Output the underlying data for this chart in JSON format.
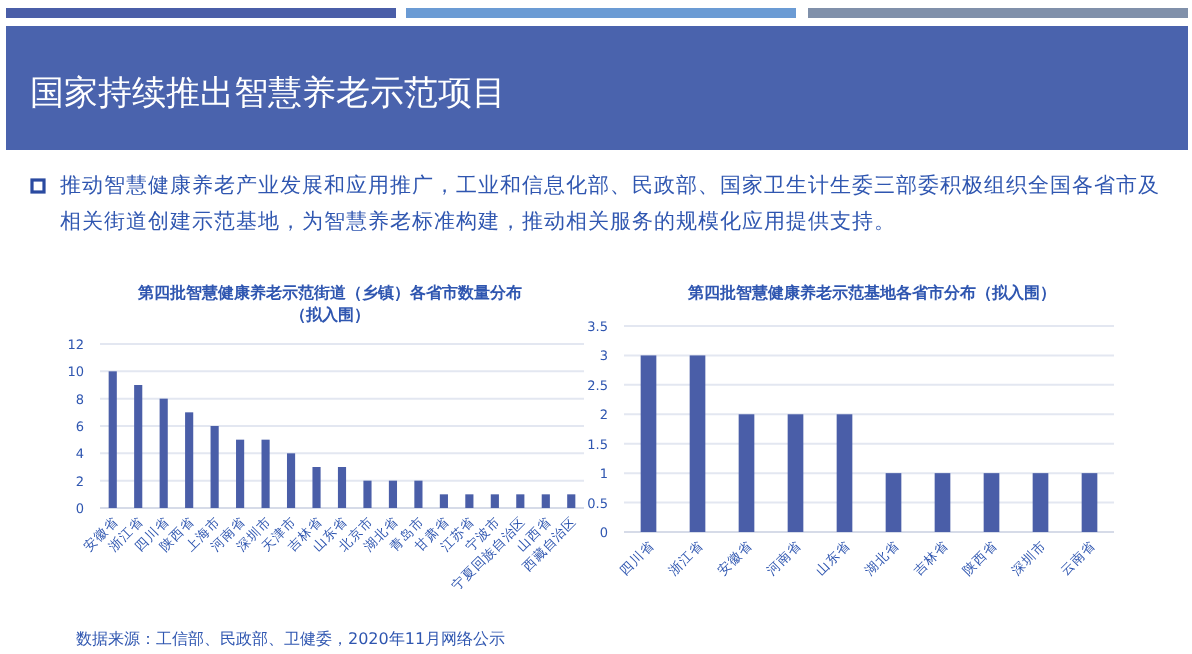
{
  "chart_data": [
    {
      "type": "other",
      "title": "国家持续推出智慧养老示范项目",
      "annotations": [
        "推动智慧健康养老产业发展和应用推广，工业和信息化部、民政部、国家卫生计生委三部委积极组织全国各省市及相关街道创建示范基地，为智慧养老标准构建，推动相关服务的规模化应用提供支持。",
        "数据来源：工信部、民政部、卫健委，2020年11月网络公示"
      ]
    },
    {
      "type": "bar",
      "title": "第四批智慧健康养老示范街道（乡镇）各省市数量分布",
      "subtitle": "（拟入围）",
      "categories": [
        "安徽省",
        "浙江省",
        "四川省",
        "陕西省",
        "上海市",
        "河南省",
        "深圳市",
        "天津市",
        "吉林省",
        "山东省",
        "北京市",
        "湖北省",
        "青岛市",
        "甘肃省",
        "江苏省",
        "宁波市",
        "宁夏回族自治区",
        "山西省",
        "西藏自治区"
      ],
      "values": [
        10,
        9,
        8,
        7,
        6,
        5,
        5,
        4,
        3,
        3,
        2,
        2,
        2,
        1,
        1,
        1,
        1,
        1,
        1
      ],
      "color": "#4a5ea8",
      "ylim": [
        0,
        12
      ],
      "yticks": [
        0,
        2,
        4,
        6,
        8,
        10,
        12
      ],
      "grid": "y"
    },
    {
      "type": "bar",
      "title": "第四批智慧健康养老示范基地各省市分布（拟入围）",
      "categories": [
        "四川省",
        "浙江省",
        "安徽省",
        "河南省",
        "山东省",
        "湖北省",
        "吉林省",
        "陕西省",
        "深圳市",
        "云南省"
      ],
      "values": [
        3,
        3,
        2,
        2,
        2,
        1,
        1,
        1,
        1,
        1
      ],
      "color": "#4a5ea8",
      "ylim": [
        0,
        3.5
      ],
      "yticks": [
        0,
        0.5,
        1,
        1.5,
        2,
        2.5,
        3,
        3.5
      ],
      "grid": "y"
    }
  ]
}
